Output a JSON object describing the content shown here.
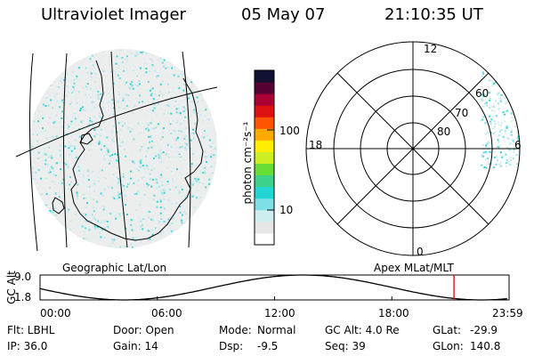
{
  "header": {
    "instrument": "Ultraviolet Imager",
    "date": "05 May 07",
    "time": "21:10:35 UT"
  },
  "colorbar": {
    "unit_label": "photon cm⁻²s⁻¹",
    "ticks": [
      "100",
      "10"
    ],
    "colors": [
      "#ffffff",
      "#e6e6e6",
      "#cfeef0",
      "#7fe0e6",
      "#22d6d6",
      "#3cd28c",
      "#66dd33",
      "#ccee22",
      "#ffee00",
      "#ffaa00",
      "#ff5500",
      "#dd1111",
      "#aa0033",
      "#550033",
      "#111133"
    ]
  },
  "geo_panel": {
    "label": "Geographic Lat/Lon"
  },
  "polar_panel": {
    "label": "Apex MLat/MLT",
    "mlt_labels": {
      "top": "12",
      "left": "18",
      "right": "6",
      "bottom": "0"
    },
    "lat_labels": [
      "60",
      "70",
      "80"
    ]
  },
  "altitude_plot": {
    "ylabel": "GC Alt",
    "ymax": "9.0",
    "ymin": "1.8",
    "xticks": [
      "00:00",
      "06:00",
      "12:00",
      "18:00",
      "23:59"
    ],
    "current_time_hours": 21.18,
    "marker_color": "#dd0000"
  },
  "status": {
    "col1": [
      "Flt: LBHL",
      "IP: 36.0"
    ],
    "col2": [
      "Door: Open",
      "Gain: 14"
    ],
    "col3_keys": [
      "Mode:",
      "Dsp:"
    ],
    "col3_vals": [
      "Normal",
      "-9.5"
    ],
    "col4": [
      "GC Alt: 4.0 Re",
      "Seq: 39"
    ],
    "col5_keys": [
      "GLat:",
      "GLon:"
    ],
    "col5_vals": [
      "-29.9",
      "140.8"
    ]
  },
  "icons": {
    "earth_image": "auroral-image",
    "polar_grid": "polar-grid-icon"
  }
}
